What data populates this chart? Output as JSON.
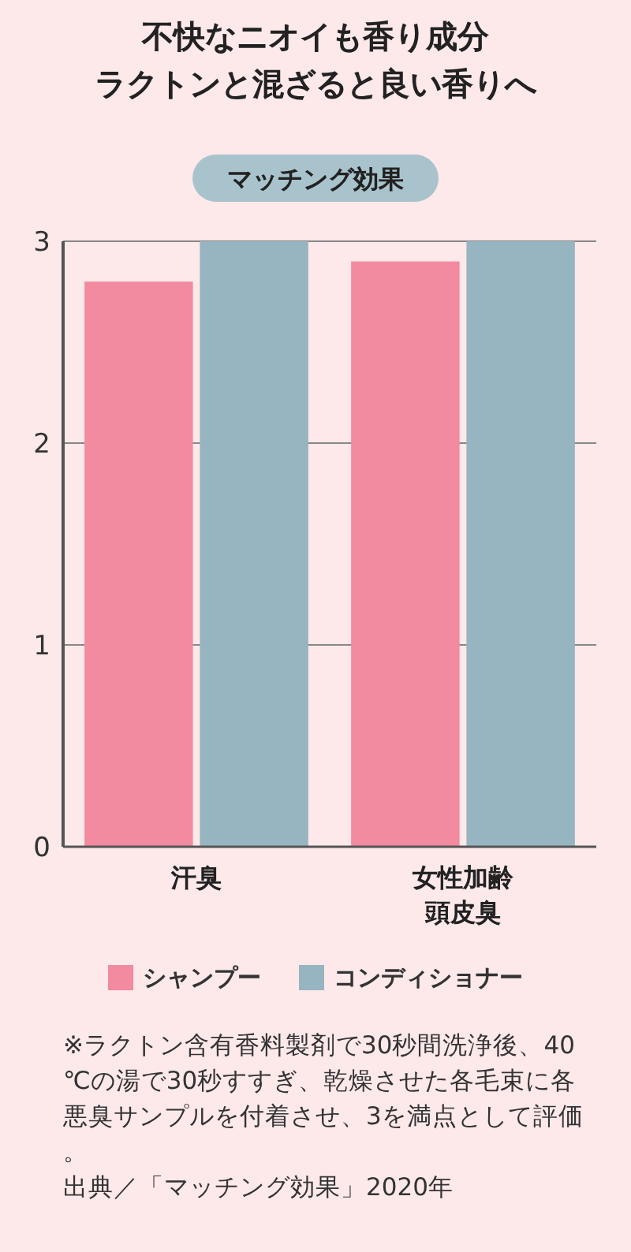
{
  "chart_data": {
    "type": "bar",
    "title": "不快なニオイも香り成分ラクトンと混ざると良い香りへ",
    "subtitle": "マッチング効果",
    "categories": [
      "汗臭",
      "女性加齢頭皮臭"
    ],
    "series": [
      {
        "name": "シャンプー",
        "color": "#f28aa0",
        "values": [
          2.8,
          2.9
        ]
      },
      {
        "name": "コンディショナー",
        "color": "#97b5c0",
        "values": [
          3,
          3
        ]
      }
    ],
    "ylim": [
      0,
      3
    ],
    "yticks": [
      0,
      1,
      2,
      3
    ],
    "grid": "y",
    "legend": "bottom",
    "annotations": [
      "※ラクトン含有香料製剤で30秒間洗浄後、40℃の湯で30秒すすぎ、乾燥させた各毛束に各悪臭サンプルを付着させ、3を満点として評価。",
      "出典／「マッチング効果」2020年"
    ]
  }
}
